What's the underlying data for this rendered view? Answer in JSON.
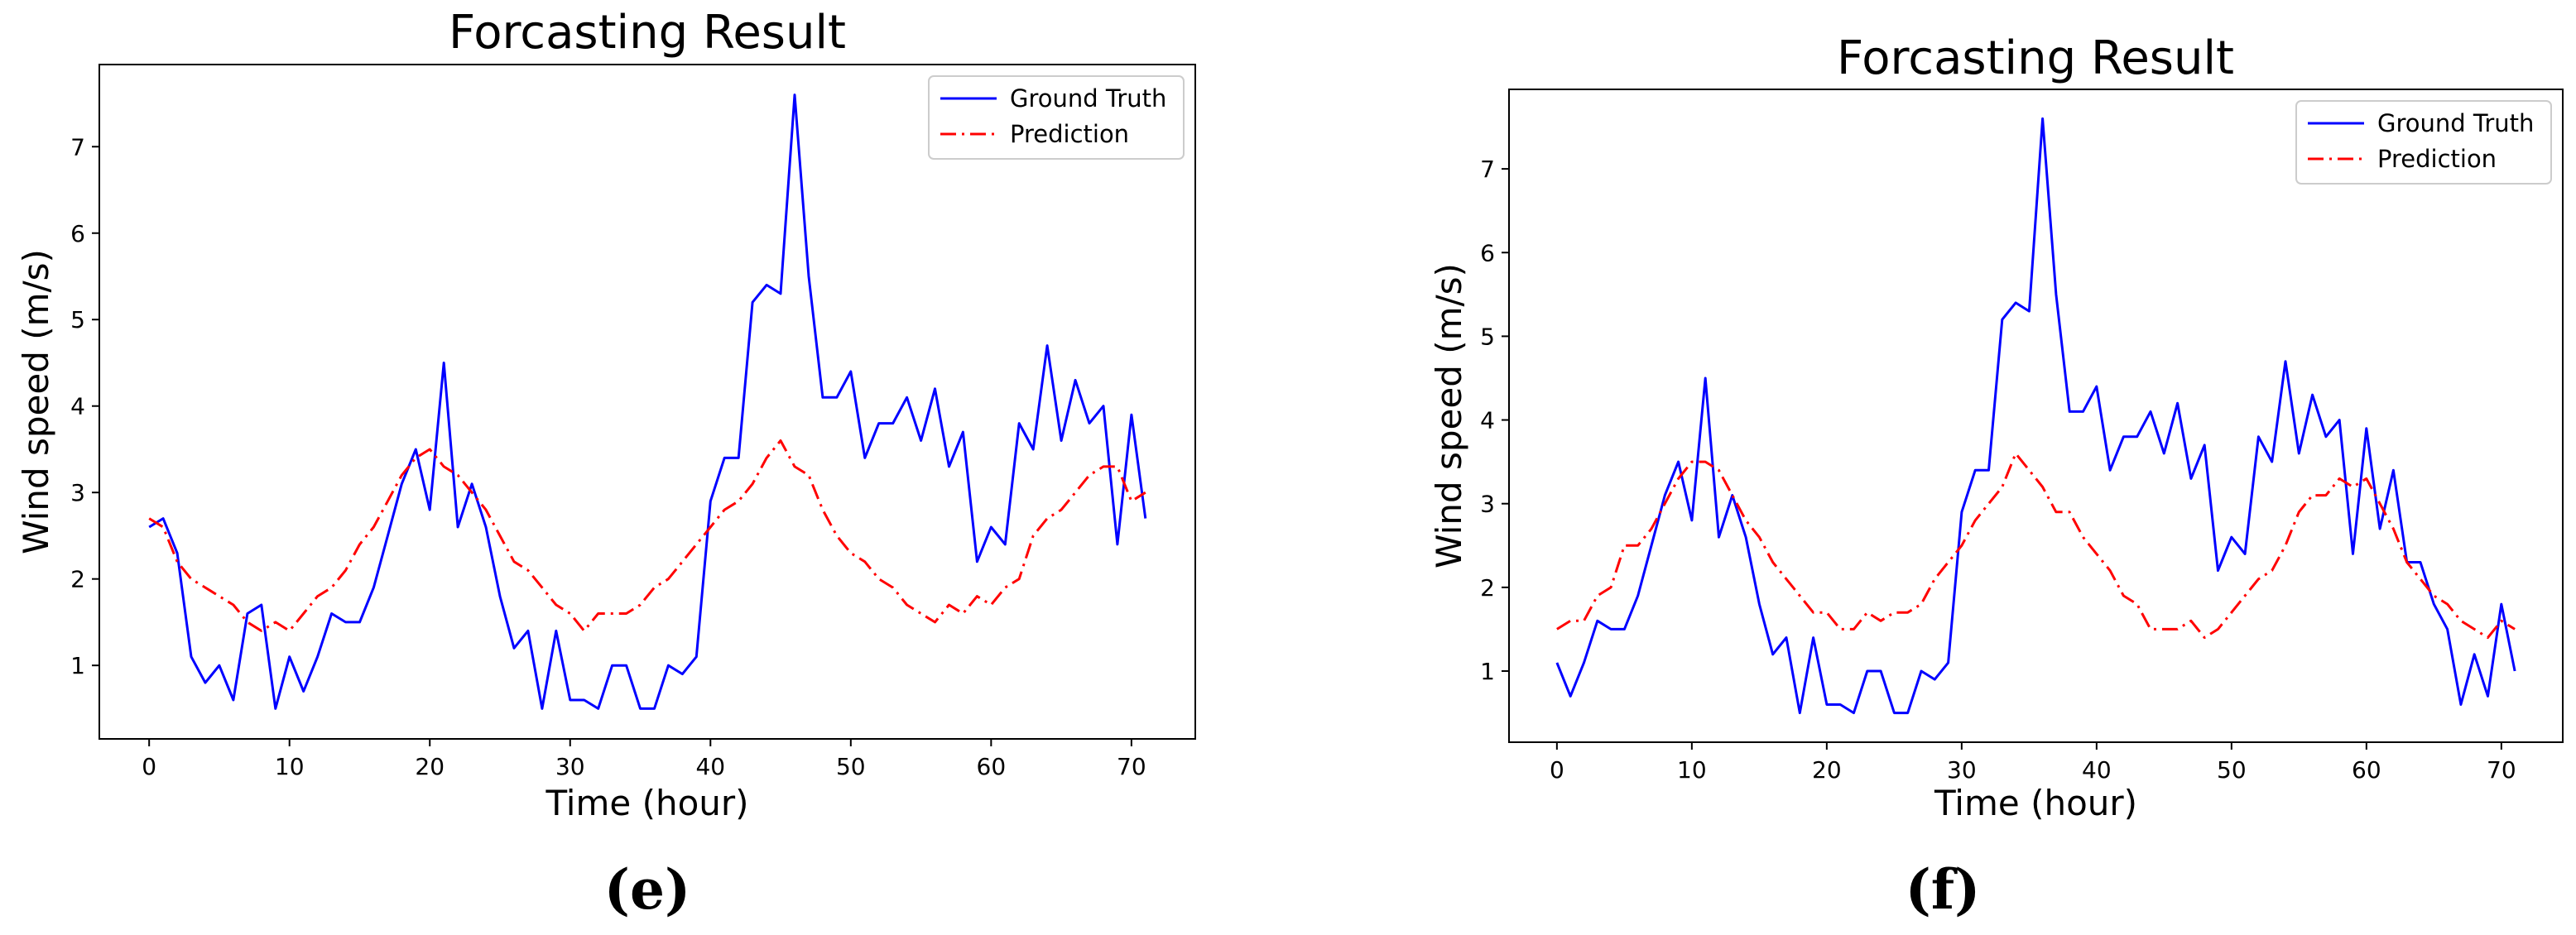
{
  "chart_data": [
    {
      "type": "line",
      "panel_label": "(e)",
      "title": "Forcasting Result",
      "xlabel": "Time (hour)",
      "ylabel": "Wind speed (m/s)",
      "xlim": [
        -3.55,
        74.55
      ],
      "ylim": [
        0.15,
        7.95
      ],
      "xticks": [
        0,
        10,
        20,
        30,
        40,
        50,
        60,
        70
      ],
      "xtick_labels": [
        "0",
        "10",
        "20",
        "30",
        "40",
        "50",
        "60",
        "70"
      ],
      "yticks": [
        1,
        2,
        3,
        4,
        5,
        6,
        7
      ],
      "ytick_labels": [
        "1",
        "2",
        "3",
        "4",
        "5",
        "6",
        "7"
      ],
      "legend": {
        "position": "top-right",
        "entries": [
          "Ground Truth",
          "Prediction"
        ]
      },
      "series": [
        {
          "name": "Ground Truth",
          "color": "#0000ff",
          "style": "solid",
          "values": [
            2.6,
            2.7,
            2.3,
            1.1,
            0.8,
            1.0,
            0.6,
            1.6,
            1.7,
            0.5,
            1.1,
            0.7,
            1.1,
            1.6,
            1.5,
            1.5,
            1.9,
            2.5,
            3.1,
            3.5,
            2.8,
            4.5,
            2.6,
            3.1,
            2.6,
            1.8,
            1.2,
            1.4,
            0.5,
            1.4,
            0.6,
            0.6,
            0.5,
            1.0,
            1.0,
            0.5,
            0.5,
            1.0,
            0.9,
            1.1,
            2.9,
            3.4,
            3.4,
            5.2,
            5.4,
            5.3,
            7.6,
            5.5,
            4.1,
            4.1,
            4.4,
            3.4,
            3.8,
            3.8,
            4.1,
            3.6,
            4.2,
            3.3,
            3.7,
            2.2,
            2.6,
            2.4,
            3.8,
            3.5,
            4.7,
            3.6,
            4.3,
            3.8,
            4.0,
            2.4,
            3.9,
            2.7
          ]
        },
        {
          "name": "Prediction",
          "color": "#ff0000",
          "style": "dashdot",
          "values": [
            2.7,
            2.6,
            2.2,
            2.0,
            1.9,
            1.8,
            1.7,
            1.5,
            1.4,
            1.5,
            1.4,
            1.6,
            1.8,
            1.9,
            2.1,
            2.4,
            2.6,
            2.9,
            3.2,
            3.4,
            3.5,
            3.3,
            3.2,
            3.0,
            2.8,
            2.5,
            2.2,
            2.1,
            1.9,
            1.7,
            1.6,
            1.4,
            1.6,
            1.6,
            1.6,
            1.7,
            1.9,
            2.0,
            2.2,
            2.4,
            2.6,
            2.8,
            2.9,
            3.1,
            3.4,
            3.6,
            3.3,
            3.2,
            2.8,
            2.5,
            2.3,
            2.2,
            2.0,
            1.9,
            1.7,
            1.6,
            1.5,
            1.7,
            1.6,
            1.8,
            1.7,
            1.9,
            2.0,
            2.5,
            2.7,
            2.8,
            3.0,
            3.2,
            3.3,
            3.3,
            2.9,
            3.0
          ]
        }
      ]
    },
    {
      "type": "line",
      "panel_label": "(f)",
      "title": "Forcasting Result",
      "xlabel": "Time (hour)",
      "ylabel": "Wind speed (m/s)",
      "xlim": [
        -3.55,
        74.55
      ],
      "ylim": [
        0.15,
        7.95
      ],
      "xticks": [
        0,
        10,
        20,
        30,
        40,
        50,
        60,
        70
      ],
      "xtick_labels": [
        "0",
        "10",
        "20",
        "30",
        "40",
        "50",
        "60",
        "70"
      ],
      "yticks": [
        1,
        2,
        3,
        4,
        5,
        6,
        7
      ],
      "ytick_labels": [
        "1",
        "2",
        "3",
        "4",
        "5",
        "6",
        "7"
      ],
      "legend": {
        "position": "top-right",
        "entries": [
          "Ground Truth",
          "Prediction"
        ]
      },
      "series": [
        {
          "name": "Ground Truth",
          "color": "#0000ff",
          "style": "solid",
          "values": [
            1.1,
            0.7,
            1.1,
            1.6,
            1.5,
            1.5,
            1.9,
            2.5,
            3.1,
            3.5,
            2.8,
            4.5,
            2.6,
            3.1,
            2.6,
            1.8,
            1.2,
            1.4,
            0.5,
            1.4,
            0.6,
            0.6,
            0.5,
            1.0,
            1.0,
            0.5,
            0.5,
            1.0,
            0.9,
            1.1,
            2.9,
            3.4,
            3.4,
            5.2,
            5.4,
            5.3,
            7.6,
            5.5,
            4.1,
            4.1,
            4.4,
            3.4,
            3.8,
            3.8,
            4.1,
            3.6,
            4.2,
            3.3,
            3.7,
            2.2,
            2.6,
            2.4,
            3.8,
            3.5,
            4.7,
            3.6,
            4.3,
            3.8,
            4.0,
            2.4,
            3.9,
            2.7,
            3.4,
            2.3,
            2.3,
            1.8,
            1.5,
            0.6,
            1.2,
            0.7,
            1.8,
            1.0
          ]
        },
        {
          "name": "Prediction",
          "color": "#ff0000",
          "style": "dashdot",
          "values": [
            1.5,
            1.6,
            1.6,
            1.9,
            2.0,
            2.5,
            2.5,
            2.7,
            3.0,
            3.3,
            3.5,
            3.5,
            3.4,
            3.1,
            2.8,
            2.6,
            2.3,
            2.1,
            1.9,
            1.7,
            1.7,
            1.5,
            1.5,
            1.7,
            1.6,
            1.7,
            1.7,
            1.8,
            2.1,
            2.3,
            2.5,
            2.8,
            3.0,
            3.2,
            3.6,
            3.4,
            3.2,
            2.9,
            2.9,
            2.6,
            2.4,
            2.2,
            1.9,
            1.8,
            1.5,
            1.5,
            1.5,
            1.6,
            1.4,
            1.5,
            1.7,
            1.9,
            2.1,
            2.2,
            2.5,
            2.9,
            3.1,
            3.1,
            3.3,
            3.2,
            3.3,
            3.0,
            2.7,
            2.3,
            2.1,
            1.9,
            1.8,
            1.6,
            1.5,
            1.4,
            1.6,
            1.5
          ]
        }
      ]
    }
  ]
}
